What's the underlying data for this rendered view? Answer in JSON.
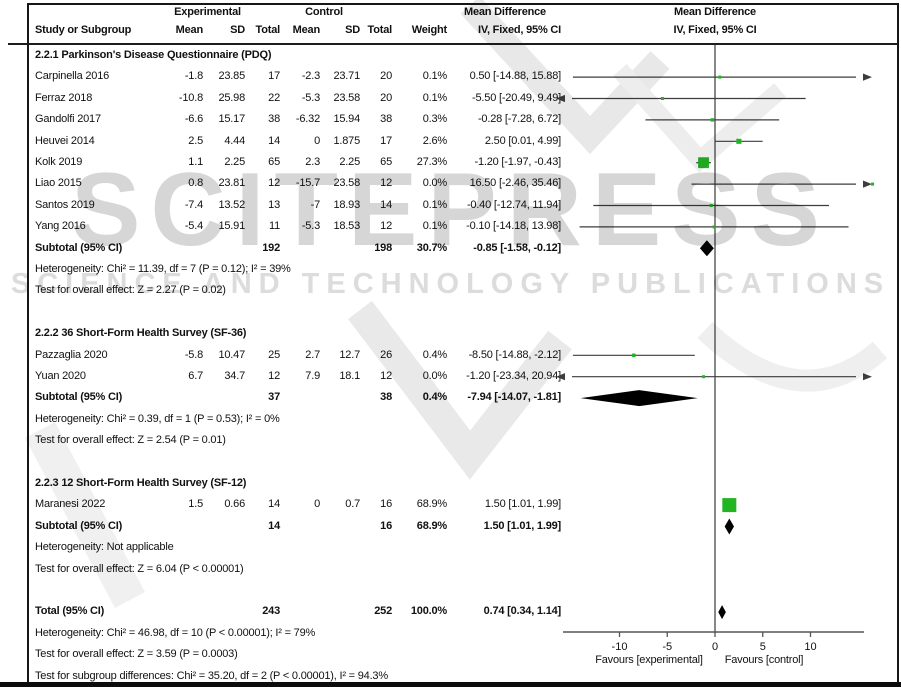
{
  "header": {
    "group_experimental": "Experimental",
    "group_control": "Control",
    "group_mean_difference": "Mean Difference",
    "group_mean_difference_plot": "Mean Difference",
    "col_study": "Study or Subgroup",
    "col_mean_e": "Mean",
    "col_sd_e": "SD",
    "col_total_e": "Total",
    "col_mean_c": "Mean",
    "col_sd_c": "SD",
    "col_total_c": "Total",
    "col_weight": "Weight",
    "col_ci": "IV, Fixed, 95% CI",
    "col_ci_plot": "IV, Fixed, 95% CI"
  },
  "axis": {
    "ticks": [
      -10,
      -5,
      0,
      5,
      10
    ],
    "min": -15.9,
    "max": 15.6,
    "favours_left": "Favours [experimental]",
    "favours_right": "Favours [control]"
  },
  "watermark": {
    "line1": "SCITEPRESS",
    "line2": "SCIENCE AND TECHNOLOGY PUBLICATIONS"
  },
  "colors": {
    "marker_green": "#22b422",
    "diamond_black": "#000000",
    "ci_line": "#3d3d3d",
    "axis_line": "#555555",
    "watermark_gray": "#cfcfcf"
  },
  "chart_data": {
    "type": "forest",
    "effect_measure": "Mean Difference, IV, Fixed, 95% CI",
    "xlim_plot": [
      -15.9,
      15.6
    ],
    "x_ticks": [
      -10,
      -5,
      0,
      5,
      10
    ],
    "sections": [
      {
        "heading": "2.2.1 Parkinson's Disease Questionnaire (PDQ)",
        "studies": [
          {
            "name": "Carpinella 2016",
            "mean_e": "-1.8",
            "sd_e": "23.85",
            "n_e": "17",
            "mean_c": "-2.3",
            "sd_c": "23.71",
            "n_c": "20",
            "weight": "0.1%",
            "ci": "0.50 [-14.88, 15.88]",
            "est": 0.5,
            "lo": -14.88,
            "hi": 15.88,
            "w": 0.1
          },
          {
            "name": "Ferraz 2018",
            "mean_e": "-10.8",
            "sd_e": "25.98",
            "n_e": "22",
            "mean_c": "-5.3",
            "sd_c": "23.58",
            "n_c": "20",
            "weight": "0.1%",
            "ci": "-5.50 [-20.49, 9.49]",
            "est": -5.5,
            "lo": -20.49,
            "hi": 9.49,
            "w": 0.1
          },
          {
            "name": "Gandolfi 2017",
            "mean_e": "-6.6",
            "sd_e": "15.17",
            "n_e": "38",
            "mean_c": "-6.32",
            "sd_c": "15.94",
            "n_c": "38",
            "weight": "0.3%",
            "ci": "-0.28 [-7.28, 6.72]",
            "est": -0.28,
            "lo": -7.28,
            "hi": 6.72,
            "w": 0.3
          },
          {
            "name": "Heuvei 2014",
            "mean_e": "2.5",
            "sd_e": "4.44",
            "n_e": "14",
            "mean_c": "0",
            "sd_c": "1.875",
            "n_c": "17",
            "weight": "2.6%",
            "ci": "2.50 [0.01, 4.99]",
            "est": 2.5,
            "lo": 0.01,
            "hi": 4.99,
            "w": 2.6
          },
          {
            "name": "Kolk 2019",
            "mean_e": "1.1",
            "sd_e": "2.25",
            "n_e": "65",
            "mean_c": "2.3",
            "sd_c": "2.25",
            "n_c": "65",
            "weight": "27.3%",
            "ci": "-1.20 [-1.97, -0.43]",
            "est": -1.2,
            "lo": -1.97,
            "hi": -0.43,
            "w": 27.3
          },
          {
            "name": "Liao 2015",
            "mean_e": "0.8",
            "sd_e": "23.81",
            "n_e": "12",
            "mean_c": "-15.7",
            "sd_c": "23.58",
            "n_c": "12",
            "weight": "0.0%",
            "ci": "16.50 [-2.46, 35.46]",
            "est": 16.5,
            "lo": -2.46,
            "hi": 35.46,
            "w": 0.0
          },
          {
            "name": "Santos 2019",
            "mean_e": "-7.4",
            "sd_e": "13.52",
            "n_e": "13",
            "mean_c": "-7",
            "sd_c": "18.93",
            "n_c": "14",
            "weight": "0.1%",
            "ci": "-0.40 [-12.74, 11.94]",
            "est": -0.4,
            "lo": -12.74,
            "hi": 11.94,
            "w": 0.1
          },
          {
            "name": "Yang 2016",
            "mean_e": "-5.4",
            "sd_e": "15.91",
            "n_e": "11",
            "mean_c": "-5.3",
            "sd_c": "18.53",
            "n_c": "12",
            "weight": "0.1%",
            "ci": "-0.10 [-14.18, 13.98]",
            "est": -0.1,
            "lo": -14.18,
            "hi": 13.98,
            "w": 0.1
          }
        ],
        "subtotal": {
          "label": "Subtotal (95% CI)",
          "n_e": "192",
          "n_c": "198",
          "weight": "30.7%",
          "ci": "-0.85 [-1.58, -0.12]",
          "est": -0.85,
          "lo": -1.58,
          "hi": -0.12
        },
        "heterogeneity": "Heterogeneity: Chi² = 11.39, df = 7 (P = 0.12); I² = 39%",
        "overall": "Test for overall effect: Z = 2.27 (P = 0.02)"
      },
      {
        "heading": "2.2.2 36 Short-Form Health Survey (SF-36)",
        "studies": [
          {
            "name": "Pazzaglia 2020",
            "mean_e": "-5.8",
            "sd_e": "10.47",
            "n_e": "25",
            "mean_c": "2.7",
            "sd_c": "12.7",
            "n_c": "26",
            "weight": "0.4%",
            "ci": "-8.50 [-14.88, -2.12]",
            "est": -8.5,
            "lo": -14.88,
            "hi": -2.12,
            "w": 0.4
          },
          {
            "name": "Yuan 2020",
            "mean_e": "6.7",
            "sd_e": "34.7",
            "n_e": "12",
            "mean_c": "7.9",
            "sd_c": "18.1",
            "n_c": "12",
            "weight": "0.0%",
            "ci": "-1.20 [-23.34, 20.94]",
            "est": -1.2,
            "lo": -23.34,
            "hi": 20.94,
            "w": 0.0
          }
        ],
        "subtotal": {
          "label": "Subtotal (95% CI)",
          "n_e": "37",
          "n_c": "38",
          "weight": "0.4%",
          "ci": "-7.94 [-14.07, -1.81]",
          "est": -7.94,
          "lo": -14.07,
          "hi": -1.81
        },
        "heterogeneity": "Heterogeneity: Chi² = 0.39, df = 1 (P = 0.53); I² = 0%",
        "overall": "Test for overall effect: Z = 2.54 (P = 0.01)"
      },
      {
        "heading": "2.2.3 12 Short-Form Health Survey (SF-12)",
        "studies": [
          {
            "name": "Maranesi 2022",
            "mean_e": "1.5",
            "sd_e": "0.66",
            "n_e": "14",
            "mean_c": "0",
            "sd_c": "0.7",
            "n_c": "16",
            "weight": "68.9%",
            "ci": "1.50 [1.01, 1.99]",
            "est": 1.5,
            "lo": 1.01,
            "hi": 1.99,
            "w": 68.9
          }
        ],
        "subtotal": {
          "label": "Subtotal (95% CI)",
          "n_e": "14",
          "n_c": "16",
          "weight": "68.9%",
          "ci": "1.50 [1.01, 1.99]",
          "est": 1.5,
          "lo": 1.01,
          "hi": 1.99
        },
        "heterogeneity": "Heterogeneity: Not applicable",
        "overall": "Test for overall effect: Z = 6.04 (P < 0.00001)"
      }
    ],
    "total": {
      "label": "Total (95% CI)",
      "n_e": "243",
      "n_c": "252",
      "weight": "100.0%",
      "ci": "0.74 [0.34, 1.14]",
      "est": 0.74,
      "lo": 0.34,
      "hi": 1.14
    },
    "footer": {
      "heterogeneity": "Heterogeneity: Chi² = 46.98, df = 10 (P < 0.00001); I² = 79%",
      "overall": "Test for overall effect: Z = 3.59 (P = 0.0003)",
      "subgroup": "Test for subgroup differences: Chi² = 35.20, df = 2 (P < 0.00001), I² = 94.3%"
    }
  }
}
